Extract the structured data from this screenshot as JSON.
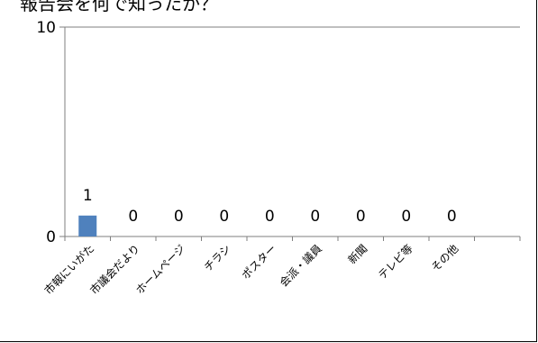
{
  "chart_data": {
    "type": "bar",
    "title": "報告会を何で知ったか？",
    "categories": [
      "市報にいがた",
      "市議会だより",
      "ホームページ",
      "チラシ",
      "ポスター",
      "会派・議員",
      "新聞",
      "テレビ等",
      "その他"
    ],
    "values": [
      1,
      0,
      0,
      0,
      0,
      0,
      0,
      0,
      0
    ],
    "ylim": [
      0,
      10
    ],
    "yticks": [
      "0",
      "10"
    ],
    "bar_color": "#4f81bd",
    "grid": false,
    "legend": "none"
  }
}
